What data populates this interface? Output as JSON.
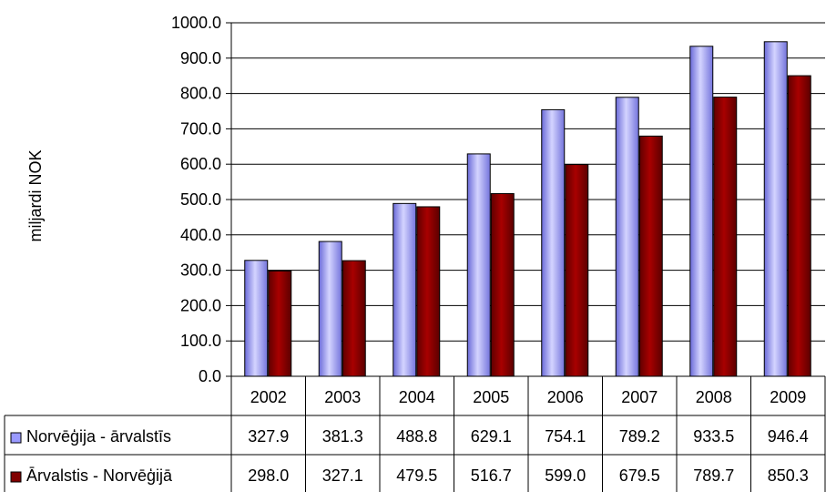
{
  "chart_data": {
    "type": "bar",
    "title": "",
    "xlabel": "",
    "ylabel": "miljardi NOK",
    "ylim": [
      0,
      1000
    ],
    "y_ticks": [
      "0.0",
      "100.0",
      "200.0",
      "300.0",
      "400.0",
      "500.0",
      "600.0",
      "700.0",
      "800.0",
      "900.0",
      "1000.0"
    ],
    "grid": true,
    "legend": "data-table",
    "categories": [
      "2002",
      "2003",
      "2004",
      "2005",
      "2006",
      "2007",
      "2008",
      "2009"
    ],
    "series": [
      {
        "name": "Norvēģija - ārvalstīs",
        "color": "#9999ff",
        "values": [
          327.9,
          381.3,
          488.8,
          629.1,
          754.1,
          789.2,
          933.5,
          946.4
        ],
        "value_labels": [
          "327.9",
          "381.3",
          "488.8",
          "629.1",
          "754.1",
          "789.2",
          "933.5",
          "946.4"
        ]
      },
      {
        "name": "Ārvalstis - Norvēģijā",
        "color": "#800000",
        "values": [
          298.0,
          327.1,
          479.5,
          516.7,
          599.0,
          679.5,
          789.7,
          850.3
        ],
        "value_labels": [
          "298.0",
          "327.1",
          "479.5",
          "516.7",
          "599.0",
          "679.5",
          "789.7",
          "850.3"
        ]
      }
    ]
  }
}
